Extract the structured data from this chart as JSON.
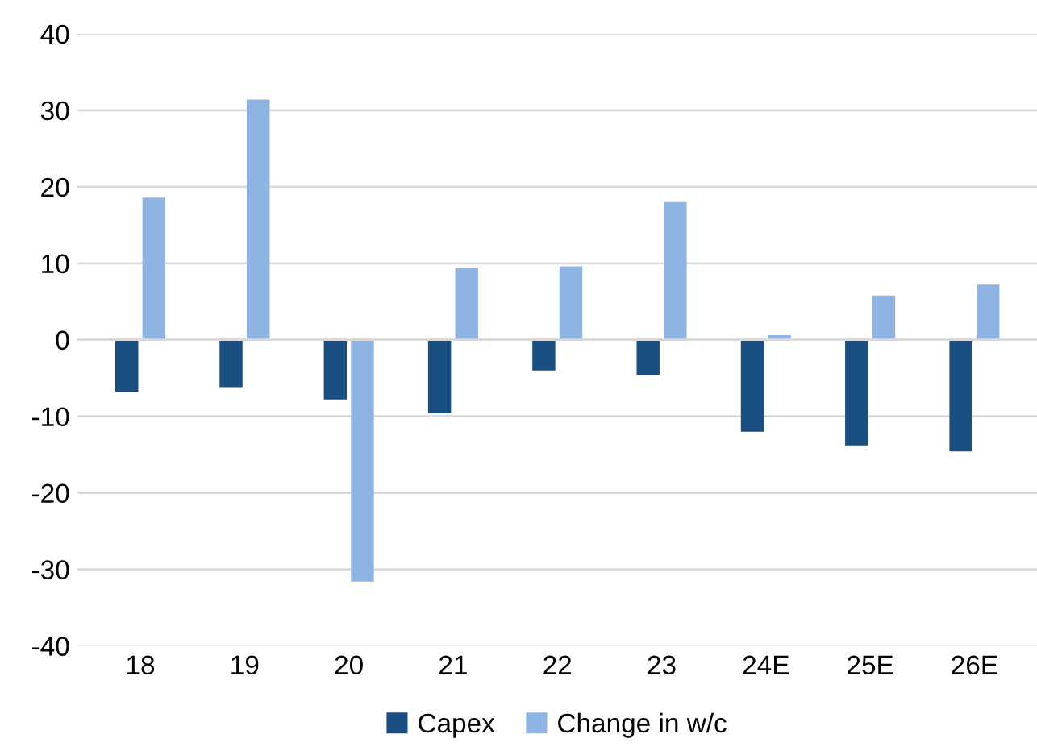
{
  "chart_data": {
    "type": "bar",
    "categories": [
      "18",
      "19",
      "20",
      "21",
      "22",
      "23",
      "24E",
      "25E",
      "26E"
    ],
    "series": [
      {
        "name": "Capex",
        "color": "#1a4f82",
        "values": [
          -6.8,
          -6.2,
          -7.8,
          -9.6,
          -4.0,
          -4.6,
          -12.0,
          -13.8,
          -14.6
        ]
      },
      {
        "name": "Change in w/c",
        "color": "#8eb4e3",
        "values": [
          18.6,
          31.4,
          -31.6,
          9.4,
          9.6,
          18.0,
          0.6,
          5.8,
          7.2
        ]
      }
    ],
    "ylim": [
      -40,
      40
    ],
    "yticks": [
      -40,
      -30,
      -20,
      -10,
      0,
      10,
      20,
      30,
      40
    ],
    "grid": "y",
    "legend": "bottom"
  }
}
